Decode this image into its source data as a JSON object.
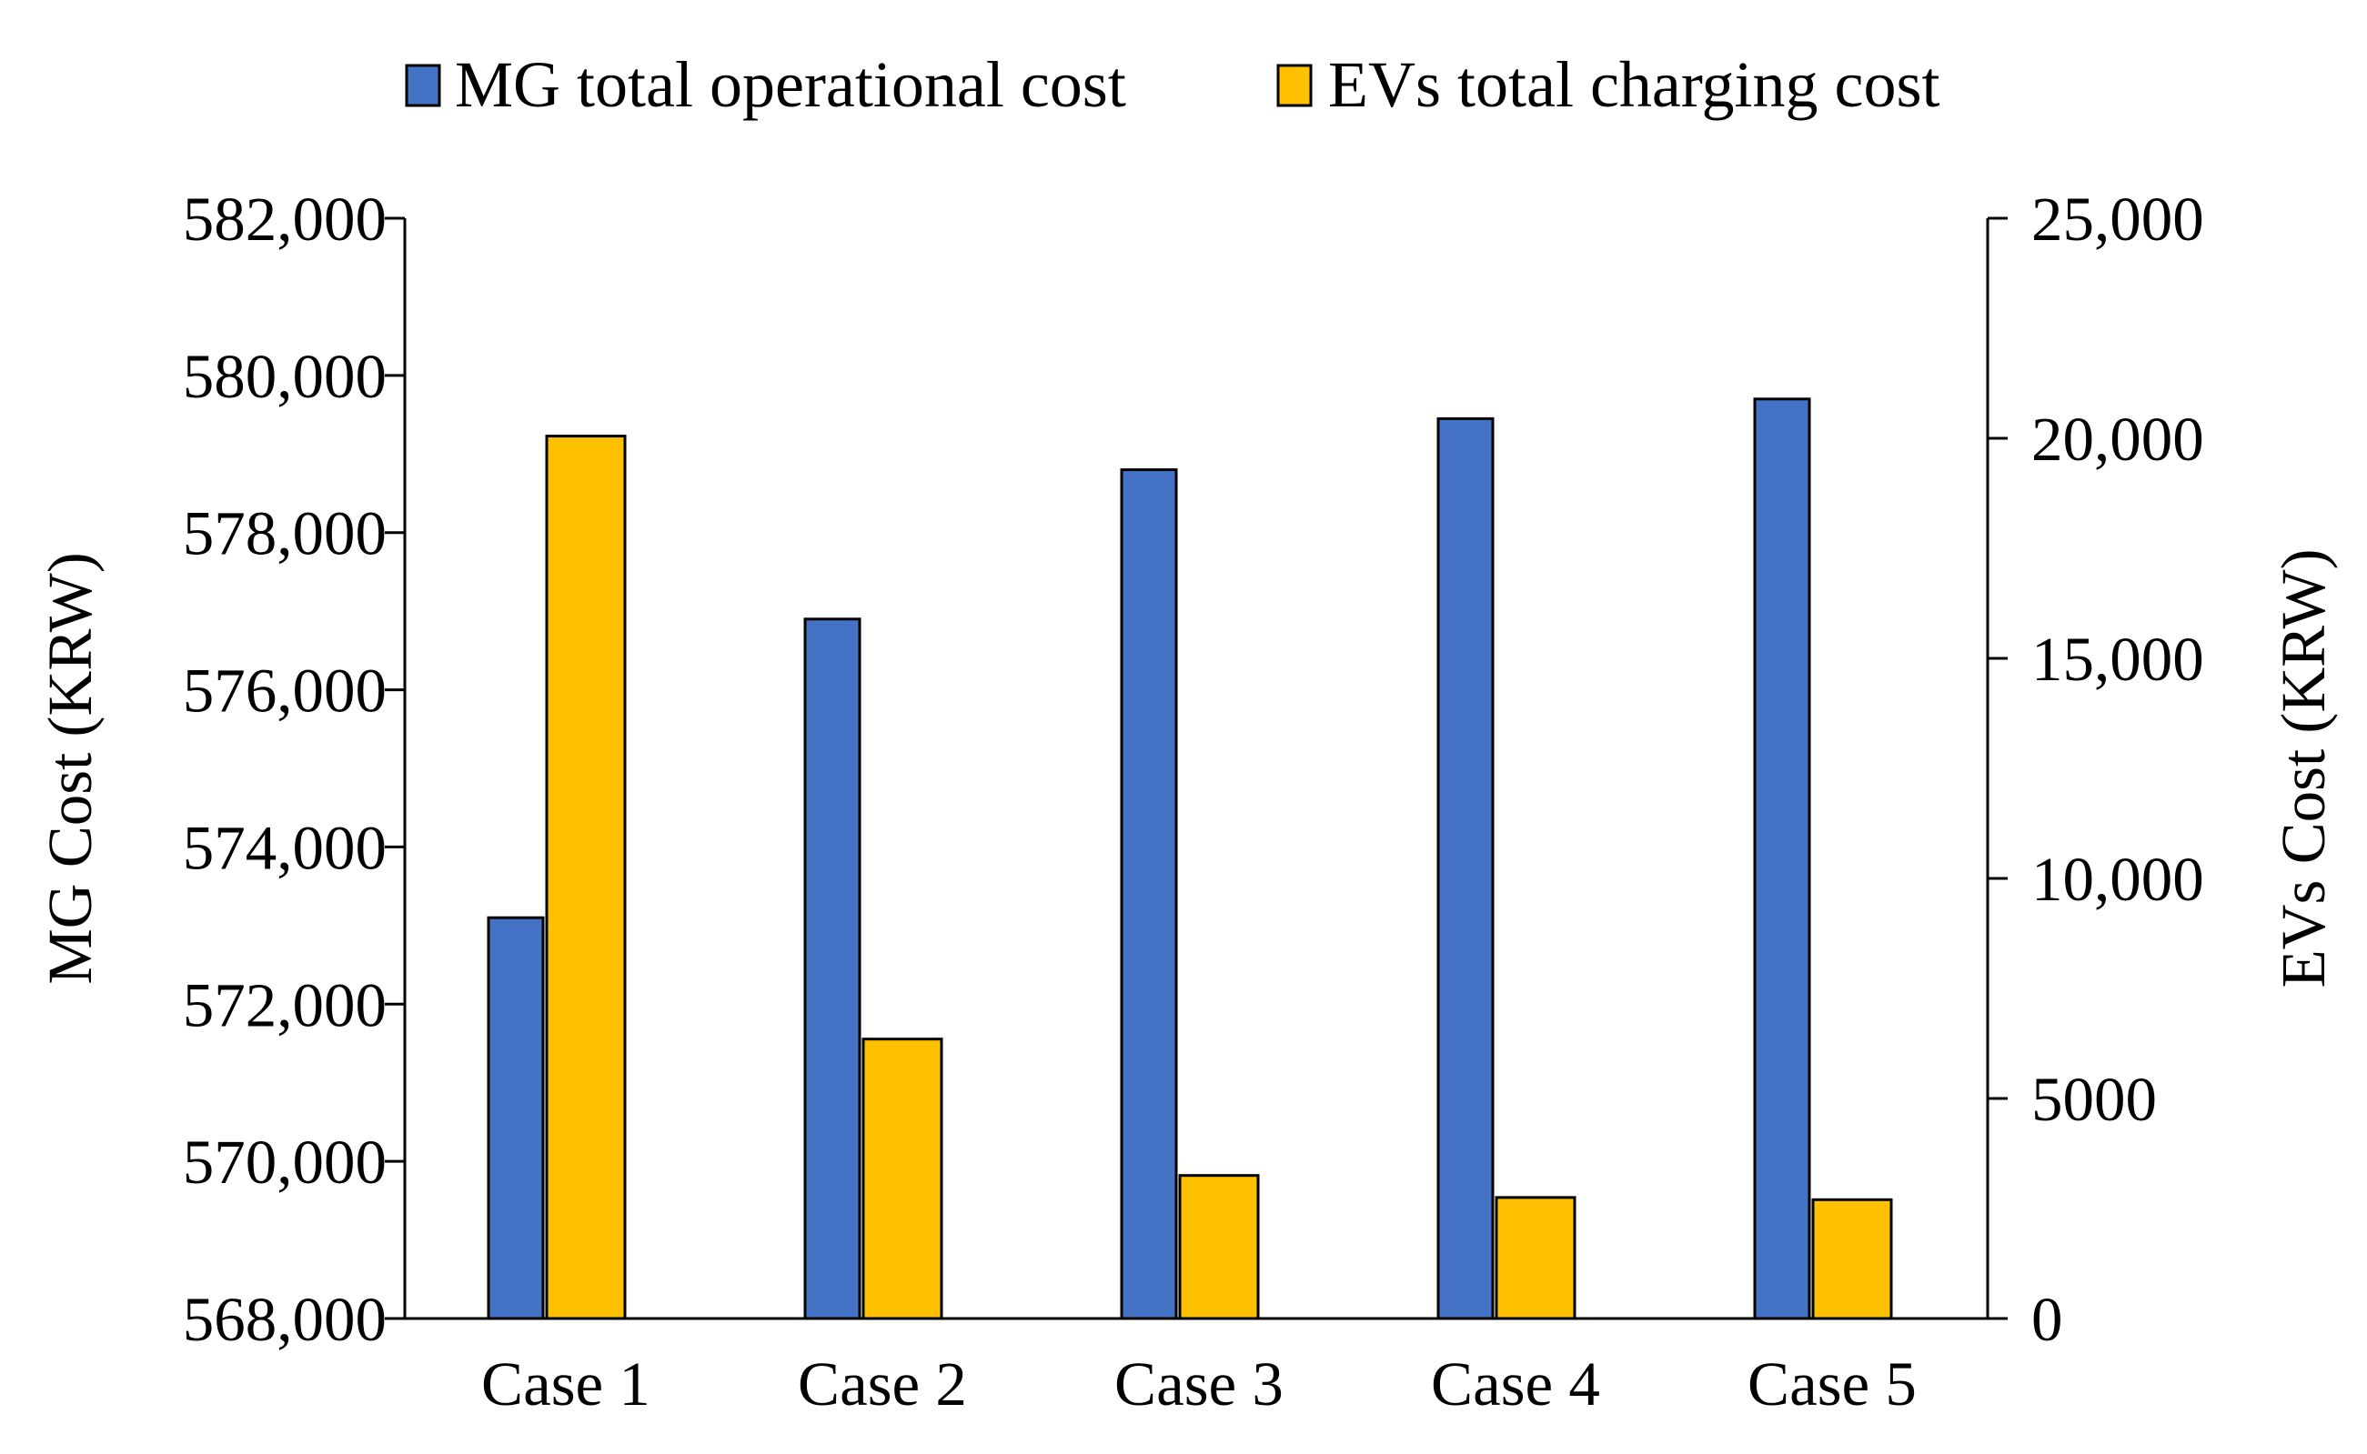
{
  "chart_data": {
    "type": "bar",
    "categories": [
      "Case 1",
      "Case 2",
      "Case 3",
      "Case 4",
      "Case 5"
    ],
    "series": [
      {
        "name": "MG total operational cost",
        "axis": "left",
        "color": "#4472C4",
        "values": [
          573100,
          576900,
          578800,
          579450,
          579700
        ]
      },
      {
        "name": "EVs total charging cost",
        "axis": "right",
        "color": "#FFC000",
        "values": [
          20050,
          6350,
          3250,
          2750,
          2700
        ]
      }
    ],
    "y_left": {
      "label": "MG Cost (KRW)",
      "range": [
        568000,
        582000
      ],
      "ticks": [
        "568,000",
        "570,000",
        "572,000",
        "574,000",
        "576,000",
        "578,000",
        "580,000",
        "582,000"
      ]
    },
    "y_right": {
      "label": "EVs Cost (KRW)",
      "range": [
        0,
        25000
      ],
      "ticks": [
        "0",
        "5000",
        "10,000",
        "15,000",
        "20,000",
        "25,000"
      ]
    },
    "grid": false,
    "legend_position": "top"
  }
}
